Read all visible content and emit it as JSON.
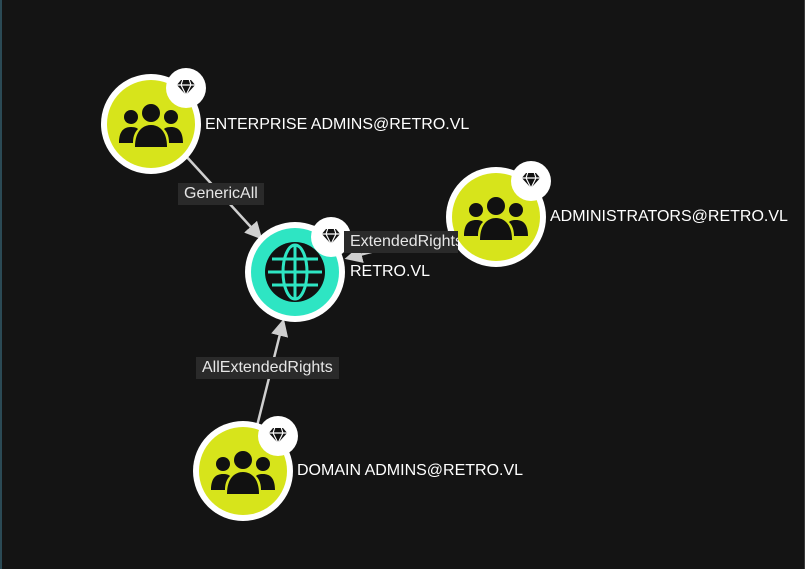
{
  "colors": {
    "background": "#141414",
    "group_node": "#d7e41b",
    "domain_node": "#2ee5c3",
    "edge": "#cfcfcf",
    "label_text": "#ffffff",
    "edge_label_bg": "#2a2a2a"
  },
  "nodes": {
    "enterprise_admins": {
      "label": "ENTERPRISE ADMINS@RETRO.VL",
      "icon": "group-icon",
      "badge": "gem-icon"
    },
    "administrators": {
      "label": "ADMINISTRATORS@RETRO.VL",
      "icon": "group-icon",
      "badge": "gem-icon"
    },
    "domain": {
      "label": "RETRO.VL",
      "icon": "globe-icon",
      "badge": "gem-icon"
    },
    "domain_admins": {
      "label": "DOMAIN ADMINS@RETRO.VL",
      "icon": "group-icon",
      "badge": "gem-icon"
    }
  },
  "edges": {
    "enterprise_to_domain": {
      "label": "GenericAll"
    },
    "administrators_to_domain": {
      "label": "ExtendedRights"
    },
    "domain_admins_to_domain": {
      "label": "AllExtendedRights"
    }
  }
}
